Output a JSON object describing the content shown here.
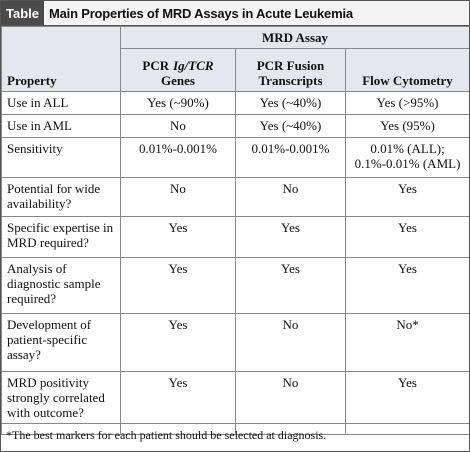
{
  "header": {
    "label": "Table",
    "title": "Main Properties of MRD Assays in Acute Leukemia"
  },
  "table": {
    "group_header": "MRD Assay",
    "property_header": "Property",
    "columns": [
      [
        "PCR",
        "Ig/TCR",
        "Genes"
      ],
      [
        "PCR Fusion",
        "Transcripts"
      ],
      [
        "Flow Cytometry"
      ]
    ],
    "rows": [
      [
        "Use in ALL",
        "Yes (~90%)",
        "Yes (~40%)",
        "Yes (>95%)"
      ],
      [
        "Use in AML",
        "No",
        "Yes (~40%)",
        "Yes (95%)"
      ],
      [
        "Sensitivity",
        "0.01%-0.001%",
        "0.01%-0.001%",
        "0.01% (ALL); 0.1%-0.01% (AML)"
      ],
      [
        "Potential for wide availability?",
        "No",
        "No",
        "Yes"
      ],
      [
        "Specific expertise in MRD required?",
        "Yes",
        "Yes",
        "Yes"
      ],
      [
        "Analysis of diagnostic sample required?",
        "Yes",
        "Yes",
        "Yes"
      ],
      [
        "Development of patient-specific assay?",
        "Yes",
        "No",
        "No*"
      ],
      [
        "MRD positivity strongly correlated with outcome?",
        "Yes",
        "No",
        "Yes"
      ]
    ]
  },
  "footnote": "*The best markers for each patient should be selected at diagnosis."
}
